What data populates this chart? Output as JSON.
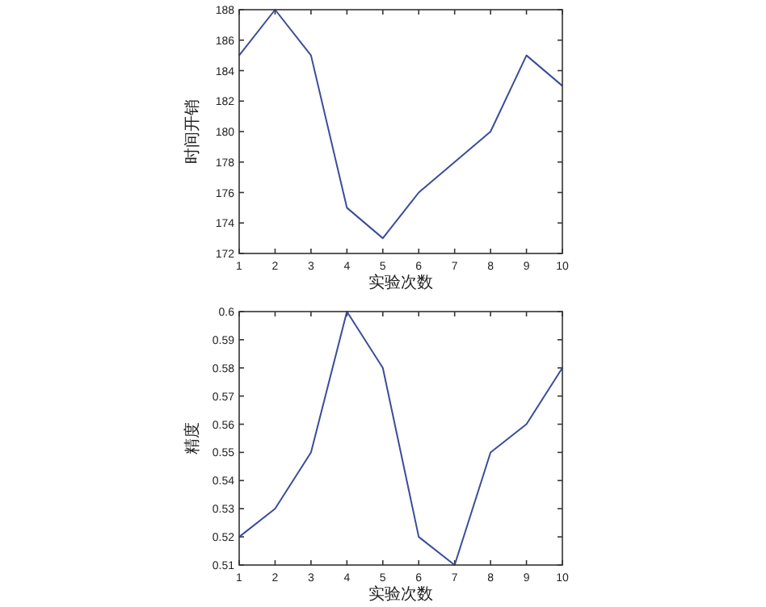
{
  "chart_data": [
    {
      "type": "line",
      "xlabel": "实验次数",
      "ylabel": "时间开销",
      "x": [
        1,
        2,
        3,
        4,
        5,
        6,
        7,
        8,
        9,
        10
      ],
      "series": [
        {
          "color": "#3b4c9a",
          "values": [
            185,
            188,
            185,
            175,
            173,
            176,
            178,
            180,
            185,
            183
          ]
        }
      ],
      "xlim": [
        1,
        10
      ],
      "xticks": [
        1,
        2,
        3,
        4,
        5,
        6,
        7,
        8,
        9,
        10
      ],
      "ylim": [
        172,
        188
      ],
      "yticks": [
        172,
        174,
        176,
        178,
        180,
        182,
        184,
        186,
        188
      ],
      "grid": false
    },
    {
      "type": "line",
      "xlabel": "实验次数",
      "ylabel": "精度",
      "x": [
        1,
        2,
        3,
        4,
        5,
        6,
        7,
        8,
        9,
        10
      ],
      "series": [
        {
          "color": "#3b4c9a",
          "values": [
            0.52,
            0.53,
            0.55,
            0.6,
            0.58,
            0.52,
            0.51,
            0.55,
            0.56,
            0.58
          ]
        }
      ],
      "xlim": [
        1,
        10
      ],
      "xticks": [
        1,
        2,
        3,
        4,
        5,
        6,
        7,
        8,
        9,
        10
      ],
      "ylim": [
        0.51,
        0.6
      ],
      "yticks": [
        0.51,
        0.52,
        0.53,
        0.54,
        0.55,
        0.56,
        0.57,
        0.58,
        0.59,
        0.6
      ],
      "grid": false
    }
  ]
}
